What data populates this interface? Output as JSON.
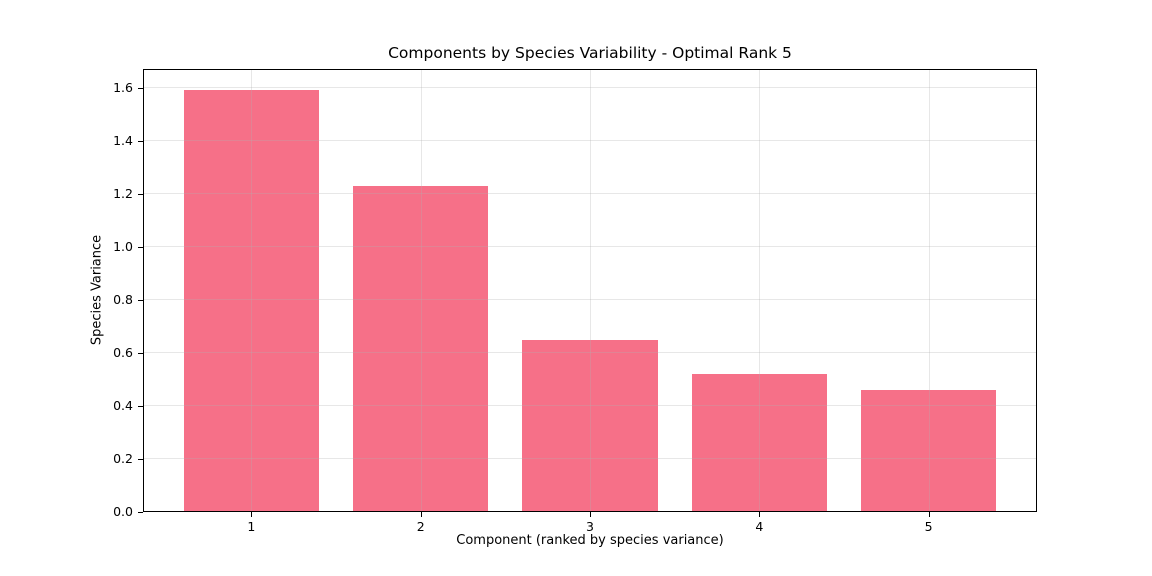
{
  "chart_data": {
    "type": "bar",
    "title": "Components by Species Variability - Optimal Rank 5",
    "xlabel": "Component (ranked by species variance)",
    "ylabel": "Species Variance",
    "categories": [
      "1",
      "2",
      "3",
      "4",
      "5"
    ],
    "values": [
      1.59,
      1.23,
      0.65,
      0.52,
      0.46
    ],
    "x_positions": [
      1,
      2,
      3,
      4,
      5
    ],
    "yticks": [
      0.0,
      0.2,
      0.4,
      0.6,
      0.8,
      1.0,
      1.2,
      1.4,
      1.6
    ],
    "ylim": [
      0,
      1.67
    ],
    "xlim": [
      0.36,
      5.64
    ],
    "bar_width_units": 0.8,
    "bar_color": "#f67088",
    "grid": true,
    "grid_color": "#b0b0b0",
    "grid_alpha": 0.3,
    "spine_color": "#000000",
    "background_color": "#ffffff",
    "legend": null
  }
}
